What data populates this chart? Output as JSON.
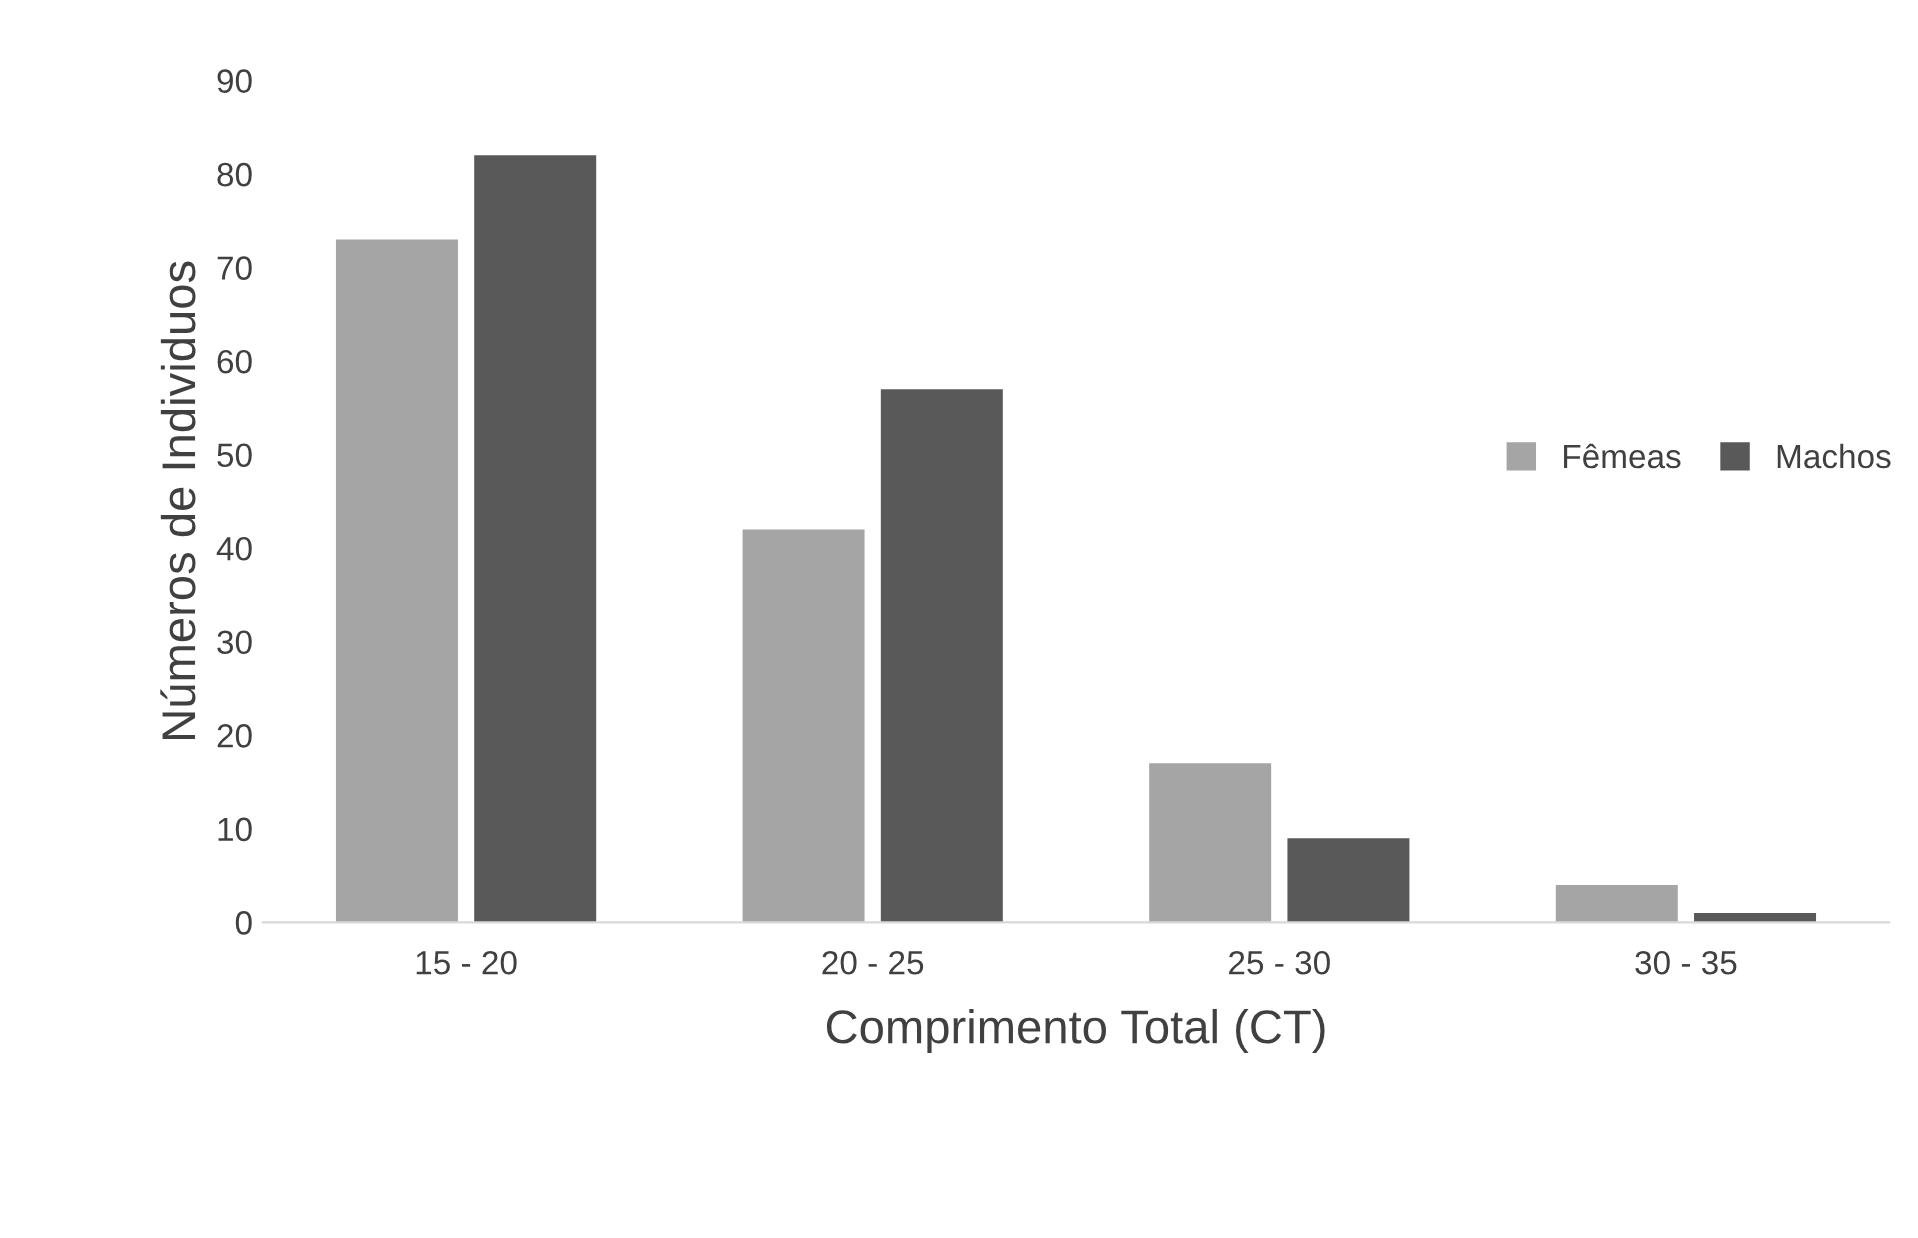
{
  "chart_data": {
    "type": "bar",
    "xlabel": "Comprimento Total (CT)",
    "ylabel": "Números de Individuos",
    "categories": [
      "15 - 20",
      "20 - 25",
      "25 - 30",
      "30 - 35"
    ],
    "series": [
      {
        "name": "Fêmeas",
        "color": "#a5a5a5",
        "values": [
          73,
          42,
          17,
          4
        ]
      },
      {
        "name": "Machos",
        "color": "#595959",
        "values": [
          82,
          57,
          9,
          1
        ]
      }
    ],
    "ylim": [
      0,
      90
    ],
    "yticks": [
      0,
      10,
      20,
      30,
      40,
      50,
      60,
      70,
      80,
      90
    ],
    "grid": false,
    "legend": "right"
  }
}
